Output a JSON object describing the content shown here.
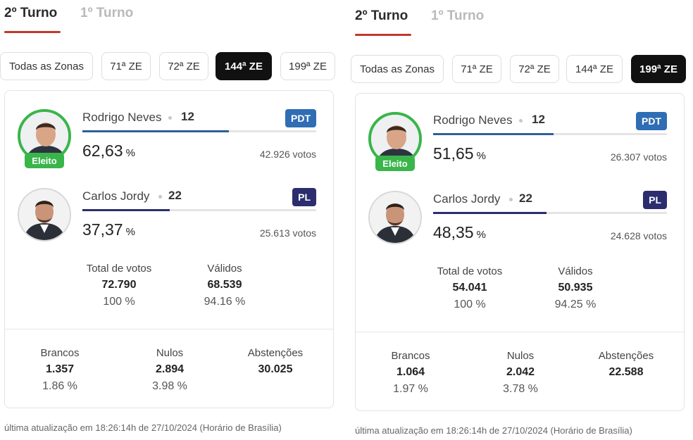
{
  "panels": [
    {
      "tabs": {
        "active": "2º Turno",
        "inactive": "1º Turno"
      },
      "zones": [
        "Todas as Zonas",
        "71ª ZE",
        "72ª ZE",
        "144ª ZE",
        "199ª ZE"
      ],
      "selected_zone": "144ª ZE",
      "candidates": [
        {
          "name": "Rodrigo Neves",
          "number": "12",
          "party": "PDT",
          "party_color": "#2f6db5",
          "percent": "62,63",
          "percent_value": 62.63,
          "votes": "42.926 votos",
          "bar_color": "#2e5f9a",
          "elected": true,
          "elected_label": "Eleito"
        },
        {
          "name": "Carlos Jordy",
          "number": "22",
          "party": "PL",
          "party_color": "#2b2d6e",
          "percent": "37,37",
          "percent_value": 37.37,
          "votes": "25.613 votos",
          "bar_color": "#2b2d6e",
          "elected": false
        }
      ],
      "totals": {
        "total_label": "Total de votos",
        "total_value": "72.790",
        "total_pct": "100 %",
        "valid_label": "Válidos",
        "valid_value": "68.539",
        "valid_pct": "94.16 %"
      },
      "others": {
        "blank_label": "Brancos",
        "blank_value": "1.357",
        "blank_pct": "1.86 %",
        "null_label": "Nulos",
        "null_value": "2.894",
        "null_pct": "3.98 %",
        "abst_label": "Abstenções",
        "abst_value": "30.025"
      },
      "footer": "última atualização em 18:26:14h de 27/10/2024 (Horário de Brasília)"
    },
    {
      "tabs": {
        "active": "2º Turno",
        "inactive": "1º Turno"
      },
      "zones": [
        "Todas as Zonas",
        "71ª ZE",
        "72ª ZE",
        "144ª ZE",
        "199ª ZE"
      ],
      "selected_zone": "199ª ZE",
      "candidates": [
        {
          "name": "Rodrigo Neves",
          "number": "12",
          "party": "PDT",
          "party_color": "#2f6db5",
          "percent": "51,65",
          "percent_value": 51.65,
          "votes": "26.307 votos",
          "bar_color": "#2e5f9a",
          "elected": true,
          "elected_label": "Eleito"
        },
        {
          "name": "Carlos Jordy",
          "number": "22",
          "party": "PL",
          "party_color": "#2b2d6e",
          "percent": "48,35",
          "percent_value": 48.35,
          "votes": "24.628 votos",
          "bar_color": "#2b2d6e",
          "elected": false
        }
      ],
      "totals": {
        "total_label": "Total de votos",
        "total_value": "54.041",
        "total_pct": "100 %",
        "valid_label": "Válidos",
        "valid_value": "50.935",
        "valid_pct": "94.25 %"
      },
      "others": {
        "blank_label": "Brancos",
        "blank_value": "1.064",
        "blank_pct": "1.97 %",
        "null_label": "Nulos",
        "null_value": "2.042",
        "null_pct": "3.78 %",
        "abst_label": "Abstenções",
        "abst_value": "22.588"
      },
      "footer": "última atualização em 18:26:14h de 27/10/2024 (Horário de Brasília)"
    }
  ]
}
